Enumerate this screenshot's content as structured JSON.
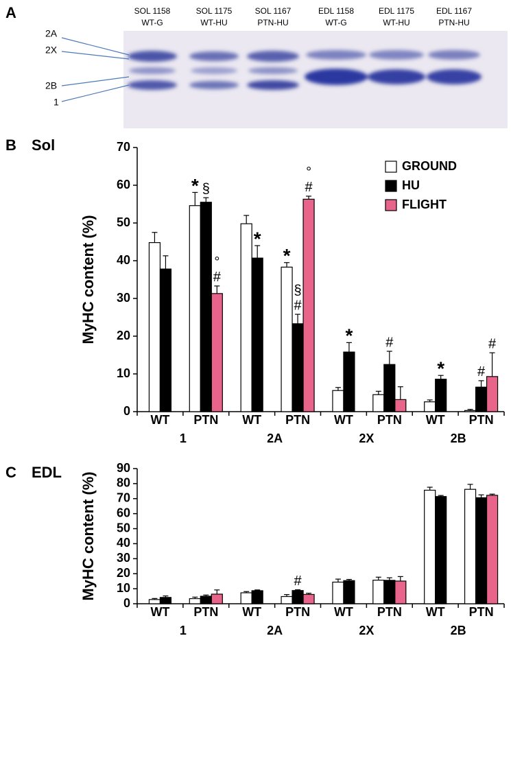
{
  "gel": {
    "panel_label": "A",
    "lanes": [
      {
        "line1": "SOL 1158",
        "line2": "WT-G"
      },
      {
        "line1": "SOL 1175",
        "line2": "WT-HU"
      },
      {
        "line1": "SOL 1167",
        "line2": "PTN-HU"
      },
      {
        "line1": "EDL 1158",
        "line2": "WT-G"
      },
      {
        "line1": "EDL 1175",
        "line2": "WT-HU"
      },
      {
        "line1": "EDL 1167",
        "line2": "PTN-HU"
      }
    ],
    "bands": [
      "2A",
      "2X",
      "2B",
      "1"
    ]
  },
  "chart_data": [
    {
      "type": "bar",
      "panel_label": "B",
      "title": "Sol",
      "ylabel": "MyHC content (%)",
      "groups": [
        "1",
        "2A",
        "2X",
        "2B"
      ],
      "categories": [
        "WT",
        "PTN",
        "WT",
        "PTN",
        "WT",
        "PTN",
        "WT",
        "PTN"
      ],
      "ylim": [
        0,
        70
      ],
      "yticks": [
        0,
        10,
        20,
        30,
        40,
        50,
        60,
        70
      ],
      "legend": "upper right",
      "series": [
        {
          "name": "GROUND",
          "color": "#ffffff",
          "values": [
            44.8,
            54.6,
            49.8,
            38.3,
            5.6,
            4.5,
            2.6,
            0.3
          ],
          "errors": [
            2.7,
            3.5,
            2.2,
            1.2,
            0.8,
            0.9,
            0.5,
            0.3
          ],
          "marks": [
            null,
            [
              "*"
            ],
            null,
            [
              "*"
            ],
            null,
            null,
            null,
            null
          ]
        },
        {
          "name": "HU",
          "color": "#000000",
          "values": [
            37.8,
            55.5,
            40.7,
            23.3,
            15.8,
            12.5,
            8.6,
            6.5
          ],
          "errors": [
            3.5,
            1.2,
            3.3,
            2.5,
            2.5,
            3.5,
            1.0,
            1.7
          ],
          "marks": [
            null,
            [
              "§"
            ],
            [
              "*"
            ],
            [
              "§",
              "#"
            ],
            [
              "*"
            ],
            [
              "#"
            ],
            [
              "*"
            ],
            [
              "#"
            ]
          ]
        },
        {
          "name": "FLIGHT",
          "color": "#e8648a",
          "values": [
            null,
            31.3,
            null,
            56.3,
            null,
            3.2,
            null,
            9.3
          ],
          "errors": [
            null,
            2.0,
            null,
            0.8,
            null,
            3.4,
            null,
            6.3
          ],
          "marks": [
            null,
            [
              "°",
              "#"
            ],
            null,
            [
              "°",
              "#"
            ],
            null,
            null,
            null,
            [
              "#"
            ]
          ]
        }
      ]
    },
    {
      "type": "bar",
      "panel_label": "C",
      "title": "EDL",
      "ylabel": "MyHC content (%)",
      "groups": [
        "1",
        "2A",
        "2X",
        "2B"
      ],
      "categories": [
        "WT",
        "PTN",
        "WT",
        "PTN",
        "WT",
        "PTN",
        "WT",
        "PTN"
      ],
      "ylim": [
        0,
        90
      ],
      "yticks": [
        0,
        10,
        20,
        30,
        40,
        50,
        60,
        70,
        80,
        90
      ],
      "series": [
        {
          "name": "GROUND",
          "color": "#ffffff",
          "values": [
            2.8,
            3.4,
            7.3,
            4.8,
            14.4,
            15.7,
            75.6,
            76.2
          ],
          "errors": [
            0.7,
            1.0,
            0.8,
            1.3,
            2.0,
            2.0,
            2.0,
            3.3
          ],
          "marks": [
            null,
            null,
            null,
            null,
            null,
            null,
            null,
            null
          ]
        },
        {
          "name": "HU",
          "color": "#000000",
          "values": [
            4.2,
            5.0,
            8.7,
            8.8,
            15.4,
            15.6,
            71.4,
            70.6
          ],
          "errors": [
            1.0,
            0.8,
            0.5,
            0.5,
            0.8,
            1.7,
            0.7,
            1.9
          ],
          "marks": [
            null,
            null,
            null,
            [
              "#"
            ],
            null,
            null,
            null,
            null
          ]
        },
        {
          "name": "FLIGHT",
          "color": "#e8648a",
          "values": [
            null,
            6.4,
            null,
            6.2,
            null,
            15.1,
            null,
            72.2
          ],
          "errors": [
            null,
            2.8,
            null,
            0.8,
            null,
            3.0,
            null,
            0.8
          ],
          "marks": [
            null,
            null,
            null,
            null,
            null,
            null,
            null,
            null
          ]
        }
      ]
    }
  ]
}
